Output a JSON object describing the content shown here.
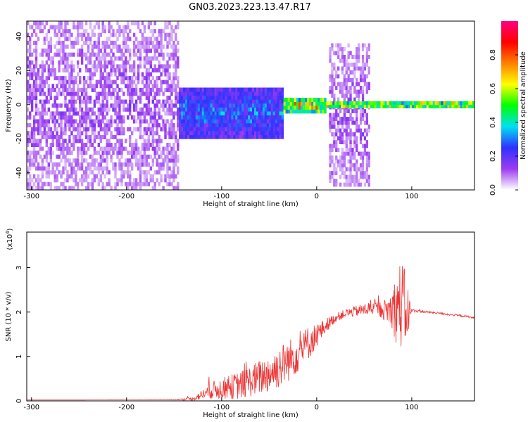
{
  "title": "GN03.2023.223.13.47.R17",
  "chart_data": [
    {
      "type": "heatmap",
      "xlabel": "Height of straight line (km)",
      "ylabel": "Frequency (Hz)",
      "xlim": [
        -305,
        166
      ],
      "ylim": [
        -50,
        49
      ],
      "xticks": [
        -300,
        -200,
        -100,
        0,
        100
      ],
      "yticks": [
        -40,
        -20,
        0,
        20,
        40
      ],
      "colorbar": {
        "label": "Normalized spectral amplitude",
        "range": [
          0,
          1
        ],
        "ticks": [
          0.0,
          0.2,
          0.4,
          0.6,
          0.8
        ],
        "tick_labels": [
          "0.0",
          "0.2",
          "0.4",
          "0.6",
          "0.8"
        ],
        "colors": [
          "#ffffff",
          "#9b3cf0",
          "#3030ff",
          "#00e0f0",
          "#00ff00",
          "#ffff00",
          "#ff8000",
          "#ff0000",
          "#ff0080"
        ]
      },
      "regions": [
        {
          "x_range": [
            -305,
            -145
          ],
          "freq_range": [
            -50,
            49
          ],
          "level": "low",
          "note": "broadband noise"
        },
        {
          "x_range": [
            -145,
            -35
          ],
          "freq_range": [
            -20,
            10
          ],
          "level": "medium"
        },
        {
          "x_range": [
            -35,
            10
          ],
          "freq_range": [
            -5,
            4
          ],
          "level": "high"
        },
        {
          "x_range": [
            13,
            56
          ],
          "freq_range": [
            -48,
            36
          ],
          "level": "low",
          "note": "broadband noise burst"
        },
        {
          "x_range": [
            10,
            166
          ],
          "freq_range": [
            -2,
            2
          ],
          "level": "high",
          "note": "narrow line near 0 Hz"
        }
      ]
    },
    {
      "type": "line",
      "xlabel": "Height of straight line (km)",
      "ylabel": "SNR (10 * v/v)",
      "yscale_label": "(x10",
      "yscale_exp": "4",
      "xlim": [
        -305,
        166
      ],
      "ylim": [
        0,
        3.8
      ],
      "xticks": [
        -300,
        -200,
        -100,
        0,
        100
      ],
      "yticks": [
        0,
        1,
        2,
        3
      ],
      "color": "#ee3333",
      "series": [
        {
          "x": [
            -305,
            -250,
            -200,
            -150,
            -130,
            -120,
            -110,
            -100,
            -90,
            -80,
            -70,
            -60,
            -50,
            -40,
            -30,
            -20,
            -10,
            0,
            10,
            20,
            30,
            40,
            50,
            60,
            70,
            80,
            85,
            90,
            95,
            100,
            110,
            120,
            130,
            140,
            150,
            160,
            166
          ],
          "y": [
            0.02,
            0.02,
            0.03,
            0.03,
            0.06,
            0.18,
            0.3,
            0.35,
            0.4,
            0.45,
            0.55,
            0.65,
            0.75,
            0.9,
            1.05,
            1.2,
            1.4,
            1.55,
            1.75,
            1.9,
            2.0,
            2.05,
            2.1,
            2.15,
            2.1,
            2.2,
            2.4,
            2.5,
            2.2,
            2.05,
            2.02,
            2.0,
            1.98,
            1.95,
            1.93,
            1.9,
            1.87
          ],
          "noise": [
            0.0,
            0.0,
            0.0,
            0.01,
            0.05,
            0.15,
            0.25,
            0.3,
            0.35,
            0.4,
            0.45,
            0.5,
            0.55,
            0.6,
            0.6,
            0.55,
            0.5,
            0.35,
            0.2,
            0.12,
            0.12,
            0.15,
            0.18,
            0.2,
            0.25,
            0.6,
            1.2,
            1.3,
            0.9,
            0.05,
            0.03,
            0.03,
            0.03,
            0.03,
            0.03,
            0.03,
            0.03
          ]
        }
      ]
    }
  ]
}
